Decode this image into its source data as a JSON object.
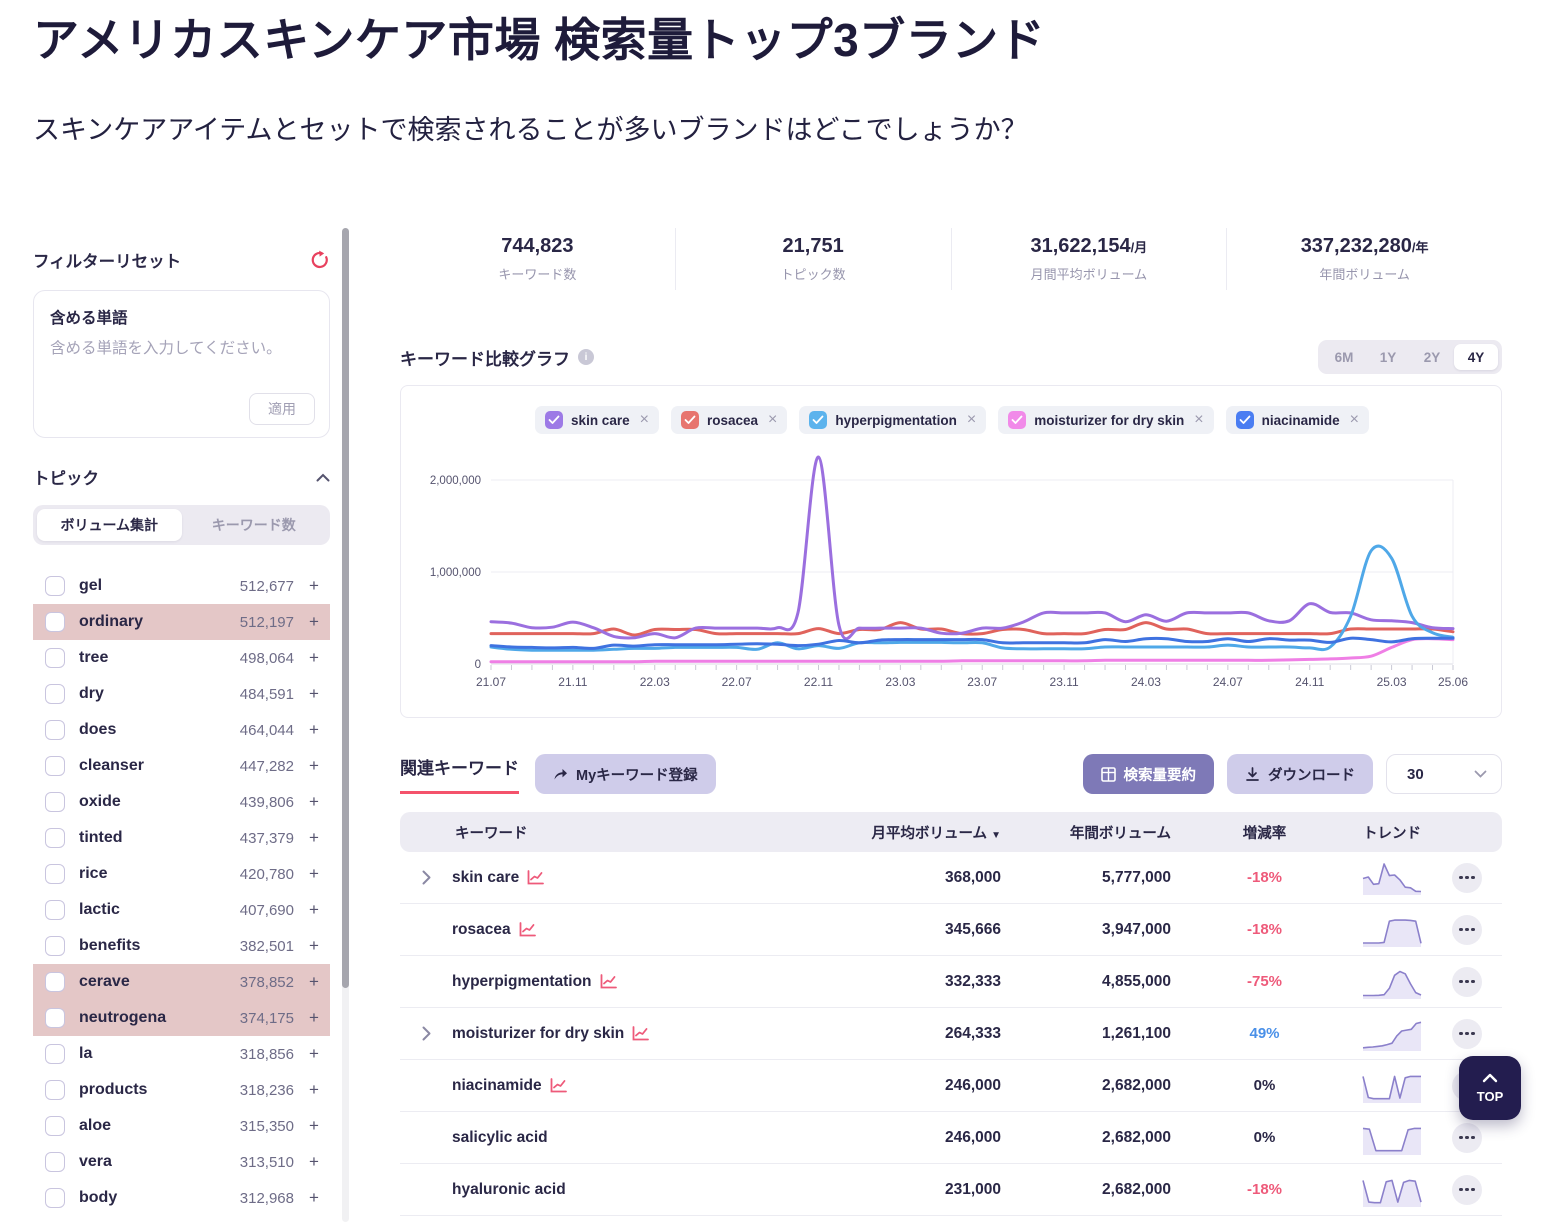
{
  "page": {
    "title": "アメリカスキンケア市場 検索量トップ3ブランド",
    "subtitle": "スキンケアアイテムとセットで検索されることが多いブランドはどこでしょうか？"
  },
  "colors": {
    "negative": "#ee5a7a",
    "positive": "#4a90e8",
    "neutral": "#2a2746",
    "accent_red": "#f4526b",
    "highlight_rose": "#e4c7c7",
    "spark_stroke": "#8b80cb",
    "spark_fill": "#e9e6f7"
  },
  "sidebar": {
    "filter_reset_label": "フィルターリセット",
    "include_words": {
      "label": "含める単語",
      "placeholder": "含める単語を入力してください。",
      "value": "",
      "apply_label": "適用"
    },
    "topic": {
      "label": "トピック",
      "tabs": [
        {
          "label": "ボリューム集計",
          "active": true
        },
        {
          "label": "キーワード数",
          "active": false
        }
      ],
      "items": [
        {
          "label": "gel",
          "value": "512,677",
          "highlighted": false
        },
        {
          "label": "ordinary",
          "value": "512,197",
          "highlighted": true
        },
        {
          "label": "tree",
          "value": "498,064",
          "highlighted": false
        },
        {
          "label": "dry",
          "value": "484,591",
          "highlighted": false
        },
        {
          "label": "does",
          "value": "464,044",
          "highlighted": false
        },
        {
          "label": "cleanser",
          "value": "447,282",
          "highlighted": false
        },
        {
          "label": "oxide",
          "value": "439,806",
          "highlighted": false
        },
        {
          "label": "tinted",
          "value": "437,379",
          "highlighted": false
        },
        {
          "label": "rice",
          "value": "420,780",
          "highlighted": false
        },
        {
          "label": "lactic",
          "value": "407,690",
          "highlighted": false
        },
        {
          "label": "benefits",
          "value": "382,501",
          "highlighted": false
        },
        {
          "label": "cerave",
          "value": "378,852",
          "highlighted": true
        },
        {
          "label": "neutrogena",
          "value": "374,175",
          "highlighted": true
        },
        {
          "label": "la",
          "value": "318,856",
          "highlighted": false
        },
        {
          "label": "products",
          "value": "318,236",
          "highlighted": false
        },
        {
          "label": "aloe",
          "value": "315,350",
          "highlighted": false
        },
        {
          "label": "vera",
          "value": "313,510",
          "highlighted": false
        },
        {
          "label": "body",
          "value": "312,968",
          "highlighted": false
        }
      ]
    }
  },
  "stats": [
    {
      "value": "744,823",
      "unit": "",
      "label": "キーワード数"
    },
    {
      "value": "21,751",
      "unit": "",
      "label": "トピック数"
    },
    {
      "value": "31,622,154",
      "unit": "/月",
      "label": "月間平均ボリューム"
    },
    {
      "value": "337,232,280",
      "unit": "/年",
      "label": "年間ボリューム"
    }
  ],
  "chart_section": {
    "title": "キーワード比較グラフ",
    "ranges": [
      "6M",
      "1Y",
      "2Y",
      "4Y"
    ],
    "active_range": "4Y"
  },
  "chart_data": {
    "type": "line",
    "title": "キーワード比較グラフ",
    "n_points": 48,
    "x_tick_labels": [
      "21.07",
      "21.11",
      "22.03",
      "22.07",
      "22.11",
      "23.03",
      "23.07",
      "23.11",
      "24.03",
      "24.07",
      "24.11",
      "25.03",
      "25.06"
    ],
    "x_tick_indices": [
      0,
      4,
      8,
      12,
      16,
      20,
      24,
      28,
      32,
      36,
      40,
      44,
      47
    ],
    "y_ticks": [
      0,
      1000000,
      2000000
    ],
    "y_tick_labels": [
      "0",
      "1,000,000",
      "2,000,000"
    ],
    "ylim": [
      0,
      2350000
    ],
    "grid": "horizontal",
    "legend_position": "top-center",
    "series": [
      {
        "name": "skin care",
        "color": "#9b6fdf",
        "checkbox_color": "#9d7ae6",
        "values": [
          460000,
          445000,
          395000,
          400000,
          455000,
          395000,
          300000,
          285000,
          330000,
          285000,
          390000,
          390000,
          390000,
          390000,
          395000,
          560000,
          2270000,
          420000,
          390000,
          390000,
          390000,
          390000,
          335000,
          335000,
          390000,
          390000,
          455000,
          555000,
          555000,
          555000,
          555000,
          460000,
          535000,
          465000,
          555000,
          555000,
          555000,
          555000,
          470000,
          470000,
          655000,
          560000,
          555000,
          480000,
          470000,
          450000,
          395000,
          385000
        ]
      },
      {
        "name": "rosacea",
        "color": "#e0635c",
        "checkbox_color": "#e7756f",
        "values": [
          330000,
          330000,
          330000,
          330000,
          330000,
          330000,
          380000,
          315000,
          375000,
          375000,
          375000,
          330000,
          330000,
          330000,
          330000,
          330000,
          385000,
          330000,
          375000,
          375000,
          450000,
          380000,
          380000,
          330000,
          330000,
          375000,
          375000,
          330000,
          330000,
          330000,
          375000,
          375000,
          450000,
          380000,
          380000,
          330000,
          330000,
          330000,
          330000,
          330000,
          330000,
          330000,
          380000,
          380000,
          380000,
          380000,
          380000,
          350000
        ]
      },
      {
        "name": "hyperpigmentation",
        "color": "#4fa8e8",
        "checkbox_color": "#5cb3ed",
        "values": [
          185000,
          160000,
          150000,
          150000,
          150000,
          150000,
          160000,
          170000,
          170000,
          180000,
          180000,
          180000,
          180000,
          160000,
          230000,
          165000,
          200000,
          170000,
          230000,
          230000,
          235000,
          235000,
          235000,
          230000,
          230000,
          175000,
          165000,
          165000,
          165000,
          165000,
          185000,
          185000,
          185000,
          185000,
          185000,
          185000,
          205000,
          185000,
          185000,
          185000,
          175000,
          185000,
          520000,
          1230000,
          1150000,
          520000,
          340000,
          290000
        ]
      },
      {
        "name": "moisturizer for dry skin",
        "color": "#ef7fe5",
        "checkbox_color": "#f18ae9",
        "values": [
          25000,
          25000,
          25000,
          25000,
          25000,
          25000,
          25000,
          25000,
          30000,
          30000,
          30000,
          30000,
          30000,
          30000,
          30000,
          30000,
          30000,
          30000,
          30000,
          30000,
          30000,
          30000,
          30000,
          35000,
          35000,
          35000,
          35000,
          35000,
          35000,
          35000,
          40000,
          40000,
          40000,
          40000,
          40000,
          40000,
          40000,
          40000,
          40000,
          45000,
          50000,
          55000,
          65000,
          85000,
          180000,
          265000,
          275000,
          265000
        ]
      },
      {
        "name": "niacinamide",
        "color": "#3f72e0",
        "checkbox_color": "#4a7df2",
        "values": [
          200000,
          185000,
          180000,
          175000,
          180000,
          170000,
          205000,
          195000,
          210000,
          210000,
          210000,
          210000,
          215000,
          220000,
          215000,
          200000,
          215000,
          255000,
          230000,
          260000,
          265000,
          265000,
          265000,
          265000,
          265000,
          230000,
          230000,
          230000,
          230000,
          230000,
          265000,
          245000,
          275000,
          275000,
          245000,
          245000,
          275000,
          245000,
          275000,
          260000,
          260000,
          235000,
          280000,
          265000,
          240000,
          275000,
          280000,
          280000
        ]
      }
    ]
  },
  "related": {
    "tab_label": "関連キーワード",
    "register_label": "Myキーワード登録",
    "summary_label": "検索量要約",
    "download_label": "ダウンロード",
    "page_size": "30",
    "columns": {
      "keyword": "キーワード",
      "monthly": "月平均ボリューム",
      "monthly_sort": "desc",
      "yearly": "年間ボリューム",
      "change": "増減率",
      "trend": "トレンド"
    },
    "rows": [
      {
        "keyword": "skin care",
        "expandable": true,
        "has_chart_icon": true,
        "monthly": "368,000",
        "yearly": "5,777,000",
        "change": "-18%",
        "change_type": "negative",
        "trend": [
          0.5,
          0.55,
          0.3,
          0.32,
          1.0,
          0.6,
          0.62,
          0.45,
          0.2,
          0.18,
          0.06,
          0.05
        ]
      },
      {
        "keyword": "rosacea",
        "expandable": false,
        "has_chart_icon": true,
        "monthly": "345,666",
        "yearly": "3,947,000",
        "change": "-18%",
        "change_type": "negative",
        "trend": [
          0.07,
          0.07,
          0.07,
          0.07,
          0.09,
          0.82,
          0.86,
          0.86,
          0.86,
          0.85,
          0.82,
          0.06
        ]
      },
      {
        "keyword": "hyperpigmentation",
        "expandable": false,
        "has_chart_icon": true,
        "monthly": "332,333",
        "yearly": "4,855,000",
        "change": "-75%",
        "change_type": "negative",
        "trend": [
          0.05,
          0.05,
          0.05,
          0.06,
          0.08,
          0.3,
          0.75,
          0.88,
          0.8,
          0.45,
          0.15,
          0.07
        ]
      },
      {
        "keyword": "moisturizer for dry skin",
        "expandable": true,
        "has_chart_icon": true,
        "monthly": "264,333",
        "yearly": "1,261,100",
        "change": "49%",
        "change_type": "positive",
        "trend": [
          0.04,
          0.06,
          0.07,
          0.09,
          0.11,
          0.15,
          0.2,
          0.45,
          0.62,
          0.65,
          0.68,
          0.88,
          0.92
        ]
      },
      {
        "keyword": "niacinamide",
        "expandable": false,
        "has_chart_icon": true,
        "monthly": "246,000",
        "yearly": "2,682,000",
        "change": "0%",
        "change_type": "neutral",
        "trend": [
          0.85,
          0.12,
          0.08,
          0.08,
          0.08,
          0.08,
          0.85,
          0.1,
          0.8,
          0.85,
          0.85,
          0.85
        ]
      },
      {
        "keyword": "salicylic acid",
        "expandable": false,
        "has_chart_icon": false,
        "monthly": "246,000",
        "yearly": "2,682,000",
        "change": "0%",
        "change_type": "neutral",
        "trend": [
          0.85,
          0.82,
          0.08,
          0.08,
          0.08,
          0.08,
          0.08,
          0.8,
          0.85,
          0.85
        ]
      },
      {
        "keyword": "hyaluronic acid",
        "expandable": false,
        "has_chart_icon": false,
        "monthly": "231,000",
        "yearly": "2,682,000",
        "change": "-18%",
        "change_type": "negative",
        "trend": [
          0.85,
          0.1,
          0.08,
          0.08,
          0.8,
          0.85,
          0.1,
          0.78,
          0.85,
          0.82,
          0.1
        ]
      }
    ]
  },
  "top_button": {
    "label": "TOP"
  }
}
